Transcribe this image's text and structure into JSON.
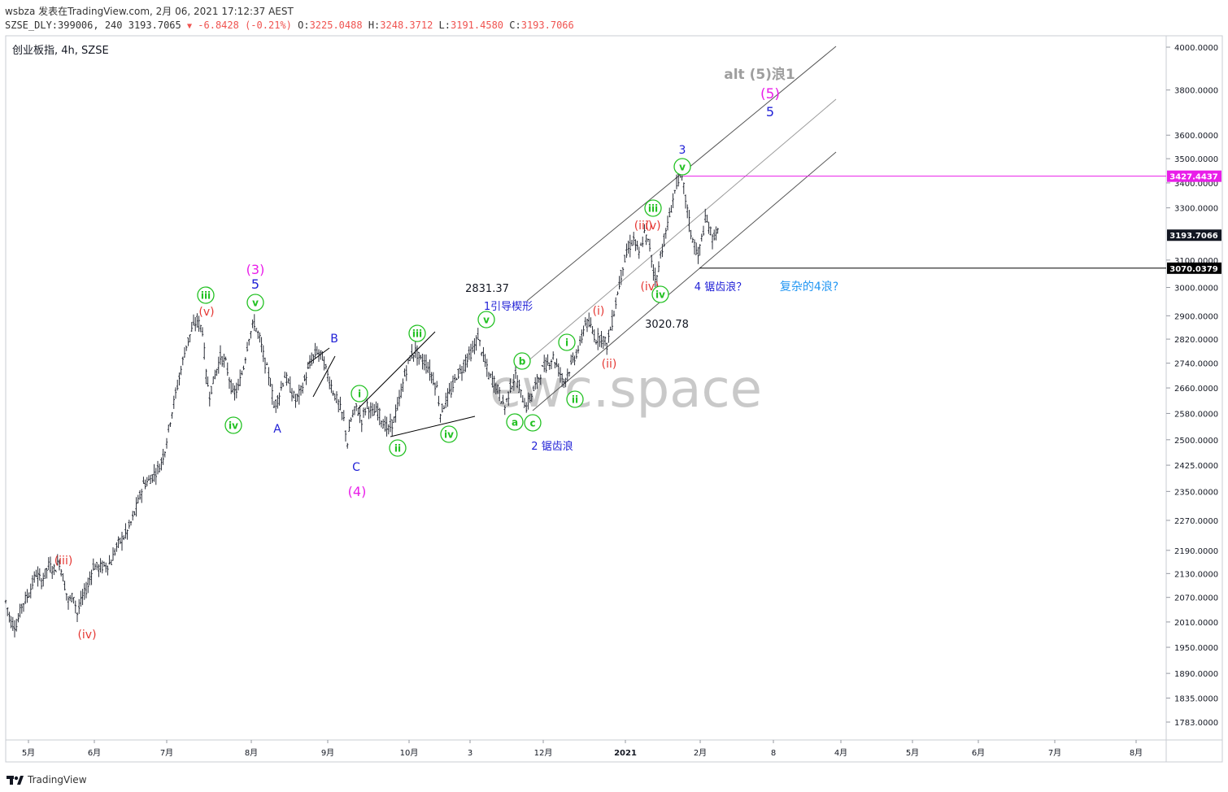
{
  "header": {
    "author": "wsbza",
    "published_prefix": "发表在TradingView.com,",
    "published_date": "2月 06, 2021 17:12:37 AEST",
    "symbol": "SZSE_DLY:399006, 240",
    "last_price": "3193.7065",
    "change": "-6.8428",
    "change_pct": "(-0.21%)",
    "o_label": "O:",
    "o_value": "3225.0488",
    "h_label": "H:",
    "h_value": "3248.3712",
    "l_label": "L:",
    "l_value": "3191.4580",
    "c_label": "C:",
    "c_value": "3193.7066"
  },
  "chart_title": "创业板指, 4h, SZSE",
  "watermark": "ewc.space",
  "footer_brand": "TradingView",
  "chart_data": {
    "type": "candlestick",
    "y_scale": "log",
    "ylim": [
      1735,
      4170
    ],
    "y_ticks": [
      "4000.0000",
      "3800.0000",
      "3600.0000",
      "3500.0000",
      "3400.0000",
      "3300.0000",
      "3100.0000",
      "3000.0000",
      "2900.0000",
      "2820.0000",
      "2740.0000",
      "2660.0000",
      "2580.0000",
      "2500.0000",
      "2425.0000",
      "2350.0000",
      "2270.0000",
      "2190.0000",
      "2130.0000",
      "2070.0000",
      "2010.0000",
      "1950.0000",
      "1890.0000",
      "1835.0000",
      "1783.0000"
    ],
    "x_ticks": [
      "5月",
      "6月",
      "7月",
      "8月",
      "9月",
      "10月",
      "3",
      "12月",
      "2021",
      "2月",
      "8",
      "4月",
      "5月",
      "6月",
      "7月",
      "8月"
    ],
    "price_tags": [
      {
        "value": "3427.4437",
        "price": 3427.4437,
        "color": "#e91ee9"
      },
      {
        "value": "3193.7066",
        "price": 3193.7066,
        "color": "#131722"
      },
      {
        "value": "3070.0379",
        "price": 3070.0379,
        "color": "#000000"
      }
    ],
    "horizontal_lines": [
      {
        "price": 3427.4437,
        "color": "#e91ee9"
      },
      {
        "price": 3070.0379,
        "color": "#000000"
      }
    ],
    "wave_labels": [
      {
        "text": "(iii)",
        "color": "#e53935",
        "circle": false,
        "anchor_price": 2155
      },
      {
        "text": "(iv)",
        "color": "#e53935",
        "circle": false,
        "anchor_price": 2025
      },
      {
        "text": "(v)",
        "color": "#e53935",
        "circle": false,
        "anchor_price": 2900
      },
      {
        "text": "iii",
        "color": "#22c122",
        "circle": true,
        "anchor_price": 2900
      },
      {
        "text": "iv",
        "color": "#22c122",
        "circle": true,
        "anchor_price": 2620
      },
      {
        "text": "(3)",
        "color": "#e91ee9",
        "circle": false,
        "anchor_price": 2890
      },
      {
        "text": "5",
        "color": "#1f1fd6",
        "circle": false,
        "anchor_price": 2890
      },
      {
        "text": "v",
        "color": "#22c122",
        "circle": true,
        "anchor_price": 2890
      },
      {
        "text": "A",
        "color": "#1f1fd6",
        "circle": false,
        "anchor_price": 2590
      },
      {
        "text": "B",
        "color": "#1f1fd6",
        "circle": false,
        "anchor_price": 2790
      },
      {
        "text": "i",
        "color": "#22c122",
        "circle": true,
        "anchor_price": 2600
      },
      {
        "text": "C",
        "color": "#1f1fd6",
        "circle": false,
        "anchor_price": 2470
      },
      {
        "text": "(4)",
        "color": "#e91ee9",
        "circle": false,
        "anchor_price": 2470
      },
      {
        "text": "ii",
        "color": "#22c122",
        "circle": true,
        "anchor_price": 2520
      },
      {
        "text": "iii",
        "color": "#22c122",
        "circle": true,
        "anchor_price": 2790
      },
      {
        "text": "iv",
        "color": "#22c122",
        "circle": true,
        "anchor_price": 2560
      },
      {
        "text": "2831.37",
        "color": "#131722",
        "circle": false,
        "anchor_price": 2831.37
      },
      {
        "text": "1引导楔形",
        "color": "#1f1fd6",
        "circle": false,
        "anchor_price": 2831.37
      },
      {
        "text": "v",
        "color": "#22c122",
        "circle": true,
        "anchor_price": 2831.37
      },
      {
        "text": "b",
        "color": "#22c122",
        "circle": true,
        "anchor_price": 2700
      },
      {
        "text": "a",
        "color": "#22c122",
        "circle": true,
        "anchor_price": 2590
      },
      {
        "text": "c",
        "color": "#22c122",
        "circle": true,
        "anchor_price": 2590
      },
      {
        "text": "2 锯齿浪",
        "color": "#1f1fd6",
        "circle": false,
        "anchor_price": 2590
      },
      {
        "text": "i",
        "color": "#22c122",
        "circle": true,
        "anchor_price": 2760
      },
      {
        "text": "ii",
        "color": "#22c122",
        "circle": true,
        "anchor_price": 2670
      },
      {
        "text": "(i)",
        "color": "#e53935",
        "circle": false,
        "anchor_price": 2880
      },
      {
        "text": "(ii)",
        "color": "#e53935",
        "circle": false,
        "anchor_price": 2800
      },
      {
        "text": "(iii)",
        "color": "#e53935",
        "circle": false,
        "anchor_price": 3200
      },
      {
        "text": "(v)",
        "color": "#e53935",
        "circle": false,
        "anchor_price": 3200
      },
      {
        "text": "iii",
        "color": "#22c122",
        "circle": true,
        "anchor_price": 3200
      },
      {
        "text": "(iv)",
        "color": "#e53935",
        "circle": false,
        "anchor_price": 3020.78
      },
      {
        "text": "iv",
        "color": "#22c122",
        "circle": true,
        "anchor_price": 3020.78
      },
      {
        "text": "3020.78",
        "color": "#131722",
        "circle": false,
        "anchor_price": 3020.78
      },
      {
        "text": "3",
        "color": "#1f1fd6",
        "circle": false,
        "anchor_price": 3440
      },
      {
        "text": "v",
        "color": "#22c122",
        "circle": true,
        "anchor_price": 3440
      },
      {
        "text": "4 锯齿浪？",
        "color": "#1f1fd6",
        "circle": false,
        "anchor_price": 3070
      },
      {
        "text": "复杂的4浪?",
        "color": "#2196f3",
        "circle": false,
        "anchor_price": 3070
      },
      {
        "text": "alt (5)浪1",
        "color": "#9e9e9e",
        "circle": false,
        "anchor_price": 3900
      },
      {
        "text": "(5)",
        "color": "#e91ee9",
        "circle": false,
        "anchor_price": 3800
      },
      {
        "text": "5",
        "color": "#1f1fd6",
        "circle": false,
        "anchor_price": 3800
      }
    ],
    "price_path": [
      {
        "t": 0,
        "p": 2060
      },
      {
        "t": 3,
        "p": 2010
      },
      {
        "t": 6,
        "p": 2000
      },
      {
        "t": 9,
        "p": 2050
      },
      {
        "t": 13,
        "p": 2080
      },
      {
        "t": 17,
        "p": 2130
      },
      {
        "t": 20,
        "p": 2110
      },
      {
        "t": 24,
        "p": 2150
      },
      {
        "t": 27,
        "p": 2140
      },
      {
        "t": 30,
        "p": 2160
      },
      {
        "t": 33,
        "p": 2100
      },
      {
        "t": 35,
        "p": 2060
      },
      {
        "t": 38,
        "p": 2075
      },
      {
        "t": 40,
        "p": 2030
      },
      {
        "t": 43,
        "p": 2070
      },
      {
        "t": 46,
        "p": 2100
      },
      {
        "t": 49,
        "p": 2150
      },
      {
        "t": 52,
        "p": 2145
      },
      {
        "t": 56,
        "p": 2150
      },
      {
        "t": 59,
        "p": 2160
      },
      {
        "t": 62,
        "p": 2200
      },
      {
        "t": 65,
        "p": 2220
      },
      {
        "t": 68,
        "p": 2240
      },
      {
        "t": 71,
        "p": 2275
      },
      {
        "t": 74,
        "p": 2320
      },
      {
        "t": 77,
        "p": 2370
      },
      {
        "t": 80,
        "p": 2380
      },
      {
        "t": 83,
        "p": 2400
      },
      {
        "t": 86,
        "p": 2420
      },
      {
        "t": 89,
        "p": 2470
      },
      {
        "t": 92,
        "p": 2560
      },
      {
        "t": 95,
        "p": 2640
      },
      {
        "t": 98,
        "p": 2720
      },
      {
        "t": 101,
        "p": 2800
      },
      {
        "t": 104,
        "p": 2850
      },
      {
        "t": 107,
        "p": 2885
      },
      {
        "t": 110,
        "p": 2850
      },
      {
        "t": 112,
        "p": 2700
      },
      {
        "t": 114,
        "p": 2640
      },
      {
        "t": 117,
        "p": 2700
      },
      {
        "t": 120,
        "p": 2760
      },
      {
        "t": 123,
        "p": 2740
      },
      {
        "t": 125,
        "p": 2690
      },
      {
        "t": 127,
        "p": 2640
      },
      {
        "t": 130,
        "p": 2660
      },
      {
        "t": 133,
        "p": 2730
      },
      {
        "t": 136,
        "p": 2830
      },
      {
        "t": 139,
        "p": 2875
      },
      {
        "t": 142,
        "p": 2820
      },
      {
        "t": 145,
        "p": 2740
      },
      {
        "t": 148,
        "p": 2680
      },
      {
        "t": 150,
        "p": 2600
      },
      {
        "t": 153,
        "p": 2640
      },
      {
        "t": 156,
        "p": 2700
      },
      {
        "t": 159,
        "p": 2660
      },
      {
        "t": 162,
        "p": 2620
      },
      {
        "t": 165,
        "p": 2650
      },
      {
        "t": 168,
        "p": 2700
      },
      {
        "t": 171,
        "p": 2750
      },
      {
        "t": 174,
        "p": 2780
      },
      {
        "t": 177,
        "p": 2760
      },
      {
        "t": 180,
        "p": 2700
      },
      {
        "t": 183,
        "p": 2650
      },
      {
        "t": 186,
        "p": 2610
      },
      {
        "t": 189,
        "p": 2560
      },
      {
        "t": 191,
        "p": 2490
      },
      {
        "t": 193,
        "p": 2560
      },
      {
        "t": 196,
        "p": 2600
      },
      {
        "t": 199,
        "p": 2560
      },
      {
        "t": 202,
        "p": 2610
      },
      {
        "t": 205,
        "p": 2580
      },
      {
        "t": 208,
        "p": 2590
      },
      {
        "t": 211,
        "p": 2550
      },
      {
        "t": 214,
        "p": 2530
      },
      {
        "t": 217,
        "p": 2560
      },
      {
        "t": 220,
        "p": 2620
      },
      {
        "t": 223,
        "p": 2700
      },
      {
        "t": 226,
        "p": 2760
      },
      {
        "t": 229,
        "p": 2780
      },
      {
        "t": 232,
        "p": 2750
      },
      {
        "t": 235,
        "p": 2740
      },
      {
        "t": 238,
        "p": 2700
      },
      {
        "t": 241,
        "p": 2660
      },
      {
        "t": 243,
        "p": 2580
      },
      {
        "t": 246,
        "p": 2620
      },
      {
        "t": 249,
        "p": 2650
      },
      {
        "t": 252,
        "p": 2700
      },
      {
        "t": 255,
        "p": 2720
      },
      {
        "t": 258,
        "p": 2760
      },
      {
        "t": 261,
        "p": 2780
      },
      {
        "t": 264,
        "p": 2830
      },
      {
        "t": 267,
        "p": 2760
      },
      {
        "t": 270,
        "p": 2700
      },
      {
        "t": 273,
        "p": 2680
      },
      {
        "t": 276,
        "p": 2640
      },
      {
        "t": 279,
        "p": 2600
      },
      {
        "t": 282,
        "p": 2660
      },
      {
        "t": 285,
        "p": 2700
      },
      {
        "t": 288,
        "p": 2640
      },
      {
        "t": 291,
        "p": 2600
      },
      {
        "t": 294,
        "p": 2640
      },
      {
        "t": 297,
        "p": 2680
      },
      {
        "t": 300,
        "p": 2720
      },
      {
        "t": 303,
        "p": 2740
      },
      {
        "t": 306,
        "p": 2760
      },
      {
        "t": 309,
        "p": 2720
      },
      {
        "t": 312,
        "p": 2680
      },
      {
        "t": 315,
        "p": 2720
      },
      {
        "t": 318,
        "p": 2760
      },
      {
        "t": 321,
        "p": 2800
      },
      {
        "t": 324,
        "p": 2880
      },
      {
        "t": 327,
        "p": 2860
      },
      {
        "t": 330,
        "p": 2820
      },
      {
        "t": 333,
        "p": 2830
      },
      {
        "t": 336,
        "p": 2800
      },
      {
        "t": 339,
        "p": 2880
      },
      {
        "t": 342,
        "p": 2980
      },
      {
        "t": 345,
        "p": 3080
      },
      {
        "t": 348,
        "p": 3140
      },
      {
        "t": 351,
        "p": 3180
      },
      {
        "t": 354,
        "p": 3120
      },
      {
        "t": 357,
        "p": 3200
      },
      {
        "t": 360,
        "p": 3150
      },
      {
        "t": 362,
        "p": 3060
      },
      {
        "t": 364,
        "p": 3030
      },
      {
        "t": 366,
        "p": 3120
      },
      {
        "t": 369,
        "p": 3200
      },
      {
        "t": 372,
        "p": 3300
      },
      {
        "t": 375,
        "p": 3400
      },
      {
        "t": 377,
        "p": 3440
      },
      {
        "t": 379,
        "p": 3380
      },
      {
        "t": 381,
        "p": 3290
      },
      {
        "t": 383,
        "p": 3200
      },
      {
        "t": 385,
        "p": 3160
      },
      {
        "t": 387,
        "p": 3110
      },
      {
        "t": 389,
        "p": 3180
      },
      {
        "t": 391,
        "p": 3250
      },
      {
        "t": 393,
        "p": 3230
      },
      {
        "t": 395,
        "p": 3180
      },
      {
        "t": 397,
        "p": 3210
      },
      {
        "t": 399,
        "p": 3193.7
      }
    ]
  },
  "colors": {
    "up": "#131722",
    "down": "#131722",
    "price_tag_current": "#131722",
    "watermark": "#b8b8b8"
  }
}
